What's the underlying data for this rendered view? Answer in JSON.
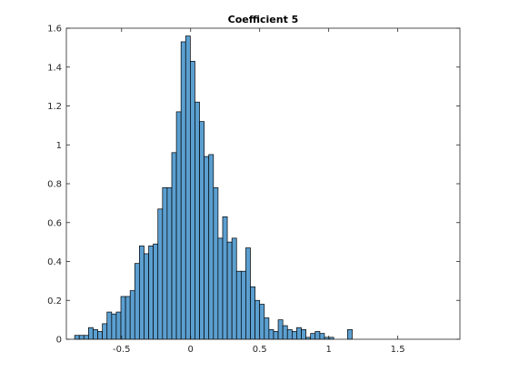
{
  "chart_data": {
    "type": "histogram",
    "title": "Coefficient 5",
    "xlabel": "",
    "ylabel": "",
    "xlim": [
      -0.9,
      1.95
    ],
    "ylim": [
      0,
      1.6
    ],
    "x_ticks": [
      -0.5,
      0,
      0.5,
      1,
      1.5
    ],
    "x_tick_labels": [
      "-0.5",
      "0",
      "0.5",
      "1",
      "1.5"
    ],
    "y_ticks": [
      0,
      0.2,
      0.4,
      0.6,
      0.8,
      1,
      1.2,
      1.4,
      1.6
    ],
    "y_tick_labels": [
      "0",
      "0.2",
      "0.4",
      "0.6",
      "0.8",
      "1",
      "1.2",
      "1.4",
      "1.6"
    ],
    "grid": false,
    "bar_color": "#5B9FD0",
    "bar_edge_color": "#000000",
    "bin_start": -0.84,
    "bin_width": 0.0335,
    "values": [
      0.02,
      0.02,
      0.02,
      0.06,
      0.05,
      0.04,
      0.08,
      0.14,
      0.13,
      0.14,
      0.22,
      0.22,
      0.25,
      0.39,
      0.48,
      0.44,
      0.48,
      0.49,
      0.67,
      0.78,
      0.78,
      0.96,
      1.17,
      1.53,
      1.56,
      1.43,
      1.22,
      1.12,
      0.94,
      0.95,
      0.78,
      0.52,
      0.63,
      0.5,
      0.52,
      0.35,
      0.35,
      0.47,
      0.27,
      0.2,
      0.18,
      0.11,
      0.05,
      0.04,
      0.1,
      0.07,
      0.05,
      0.04,
      0.06,
      0.05,
      0.01,
      0.03,
      0.04,
      0.03,
      0.01,
      0.01,
      0,
      0,
      0,
      0.05
    ]
  }
}
